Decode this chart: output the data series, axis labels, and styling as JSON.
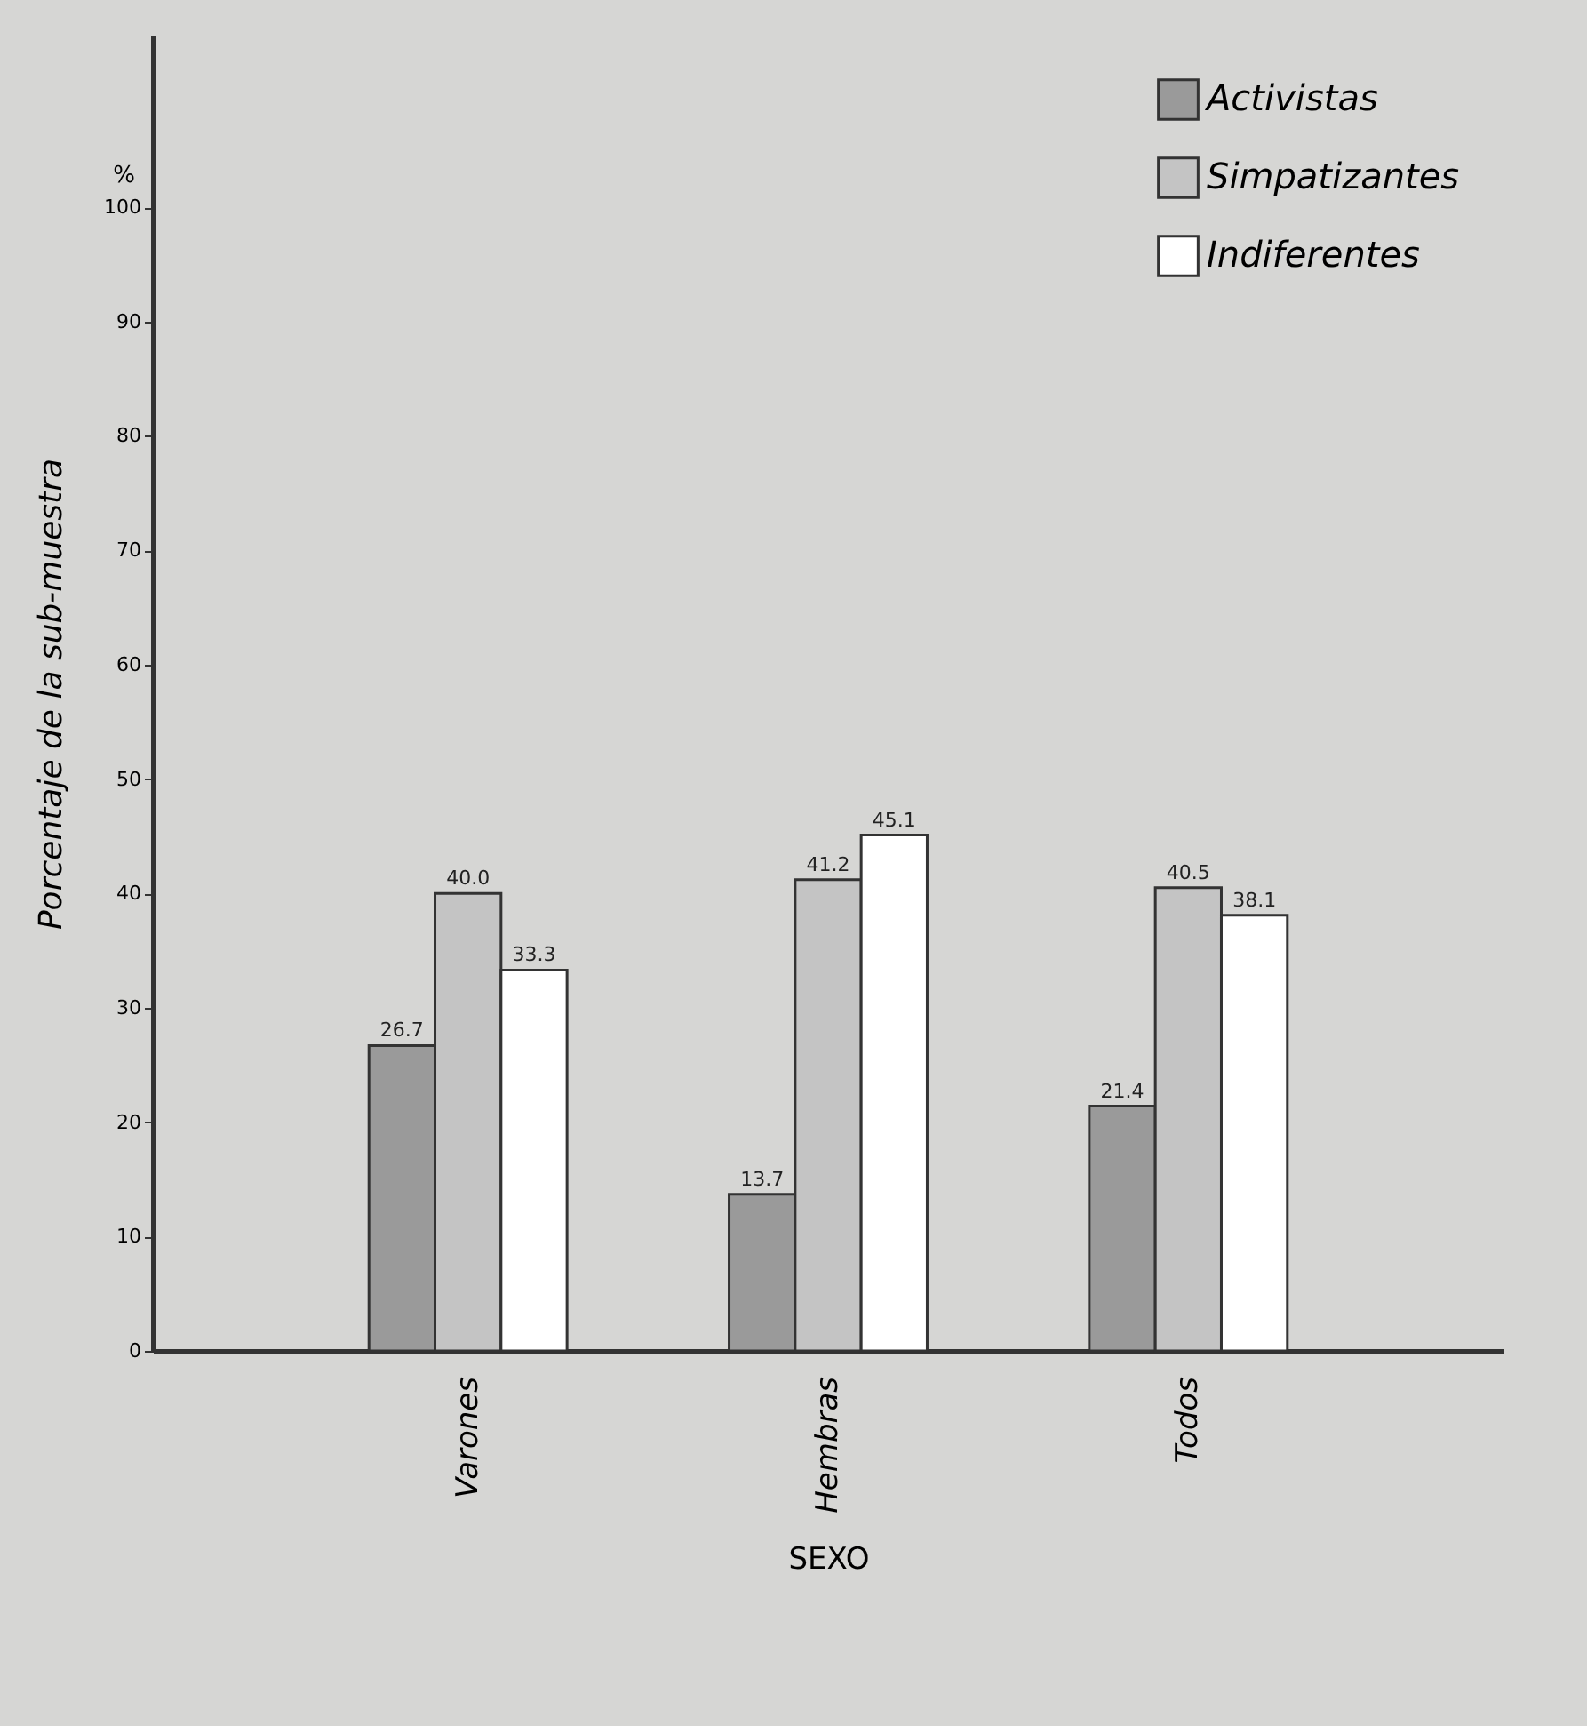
{
  "chart_data": {
    "type": "bar",
    "xlabel": "SEXO",
    "ylabel": "Porcentaje de la sub-muestra",
    "categories": [
      "Varones",
      "Hembras",
      "Todos"
    ],
    "series": [
      {
        "name": "Activistas",
        "color": "#9a9a9a",
        "values": [
          26.7,
          13.7,
          21.4
        ],
        "value_labels": [
          "26.7",
          "13.7",
          "21.4"
        ]
      },
      {
        "name": "Simpatizantes",
        "color": "#c4c4c4",
        "values": [
          40.0,
          41.2,
          40.5
        ],
        "value_labels": [
          "40.0",
          "41.2",
          "40.5"
        ]
      },
      {
        "name": "Indiferentes",
        "color": "#ffffff",
        "values": [
          33.3,
          45.1,
          38.1
        ],
        "value_labels": [
          "33.3",
          "45.1",
          "38.1"
        ]
      }
    ],
    "ylim": [
      0,
      115
    ],
    "yticks": [
      0,
      10,
      20,
      30,
      40,
      50,
      60,
      70,
      80,
      90,
      100
    ],
    "annotations": [
      "%"
    ],
    "grid": false,
    "legend": "top right"
  }
}
